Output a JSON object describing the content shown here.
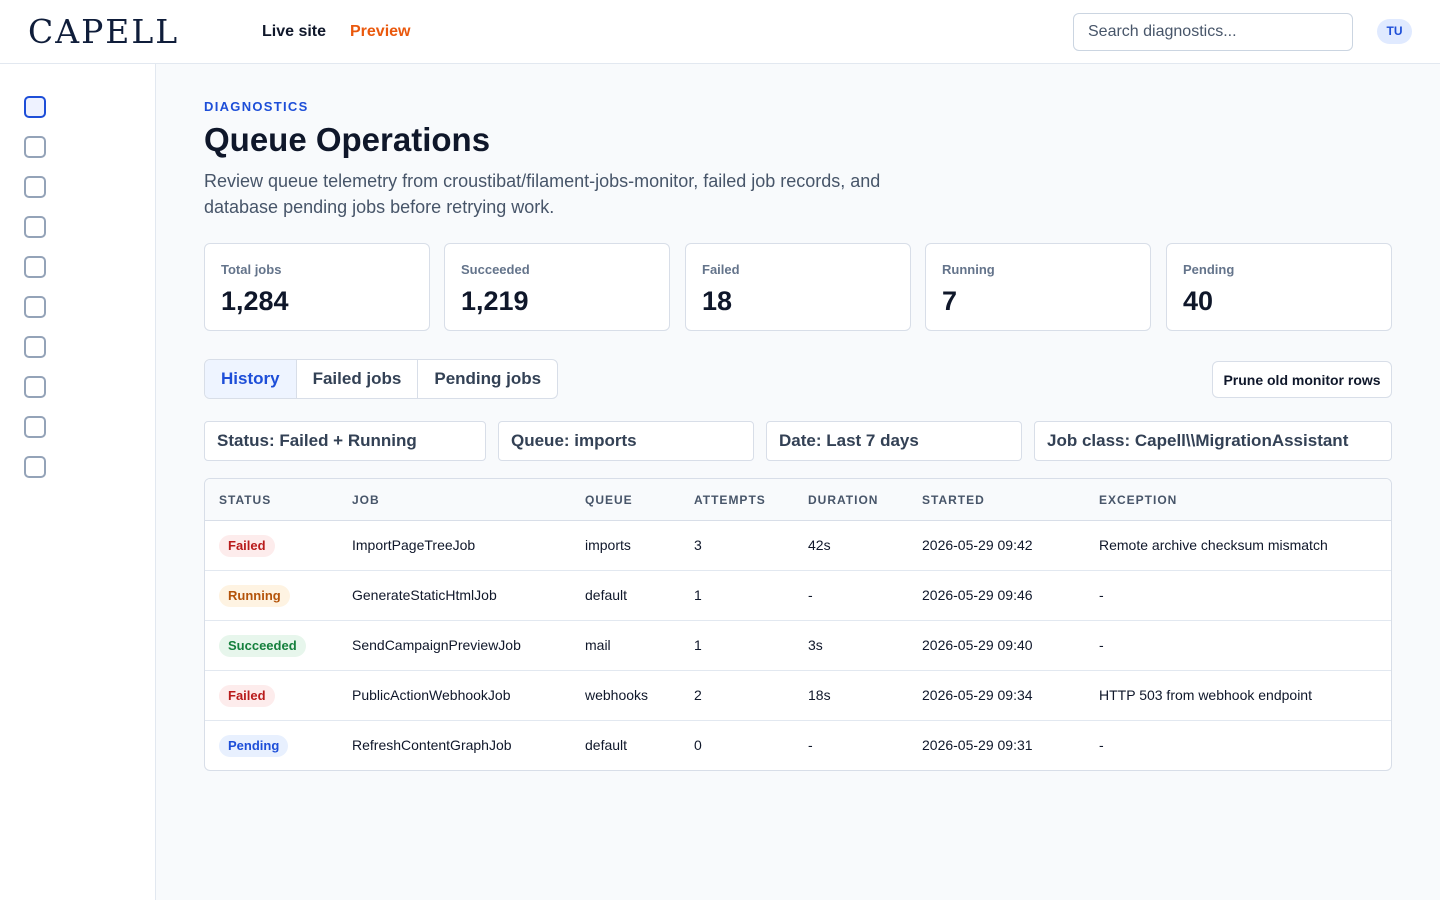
{
  "header": {
    "logo": "CAPELL",
    "nav": [
      "Live site",
      "Preview"
    ],
    "search_placeholder": "Search diagnostics...",
    "avatar_initials": "TU"
  },
  "sidebar": {
    "icon_count": 10,
    "active_index": 0
  },
  "page": {
    "eyebrow": "DIAGNOSTICS",
    "title": "Queue Operations",
    "subtitle": "Review queue telemetry from croustibat/filament-jobs-monitor, failed job records, and database pending jobs before retrying work."
  },
  "stats": [
    {
      "label": "Total jobs",
      "value": "1,284"
    },
    {
      "label": "Succeeded",
      "value": "1,219"
    },
    {
      "label": "Failed",
      "value": "18"
    },
    {
      "label": "Running",
      "value": "7"
    },
    {
      "label": "Pending",
      "value": "40"
    }
  ],
  "tabs": [
    {
      "label": "History",
      "active": true
    },
    {
      "label": "Failed jobs",
      "active": false
    },
    {
      "label": "Pending jobs",
      "active": false
    }
  ],
  "prune_label": "Prune old monitor rows",
  "filters": [
    "Status: Failed + Running",
    "Queue: imports",
    "Date: Last 7 days",
    "Job class: Capell\\\\MigrationAssistant"
  ],
  "table": {
    "columns": [
      "STATUS",
      "JOB",
      "QUEUE",
      "ATTEMPTS",
      "DURATION",
      "STARTED",
      "EXCEPTION"
    ],
    "rows": [
      {
        "status": "Failed",
        "status_kind": "failed",
        "job": "ImportPageTreeJob",
        "queue": "imports",
        "attempts": "3",
        "duration": "42s",
        "started": "2026-05-29 09:42",
        "exception": "Remote archive checksum mismatch"
      },
      {
        "status": "Running",
        "status_kind": "running",
        "job": "GenerateStaticHtmlJob",
        "queue": "default",
        "attempts": "1",
        "duration": "-",
        "started": "2026-05-29 09:46",
        "exception": "-"
      },
      {
        "status": "Succeeded",
        "status_kind": "succeeded",
        "job": "SendCampaignPreviewJob",
        "queue": "mail",
        "attempts": "1",
        "duration": "3s",
        "started": "2026-05-29 09:40",
        "exception": "-"
      },
      {
        "status": "Failed",
        "status_kind": "failed",
        "job": "PublicActionWebhookJob",
        "queue": "webhooks",
        "attempts": "2",
        "duration": "18s",
        "started": "2026-05-29 09:34",
        "exception": "HTTP 503 from webhook endpoint"
      },
      {
        "status": "Pending",
        "status_kind": "pending",
        "job": "RefreshContentGraphJob",
        "queue": "default",
        "attempts": "0",
        "duration": "-",
        "started": "2026-05-29 09:31",
        "exception": "-"
      }
    ]
  },
  "colors": {
    "accent": "#1d4ed8",
    "preview_orange": "#ea580c",
    "failed": "#b91c1c",
    "running": "#b45309",
    "succeeded": "#15803d",
    "pending": "#1d4ed8"
  }
}
